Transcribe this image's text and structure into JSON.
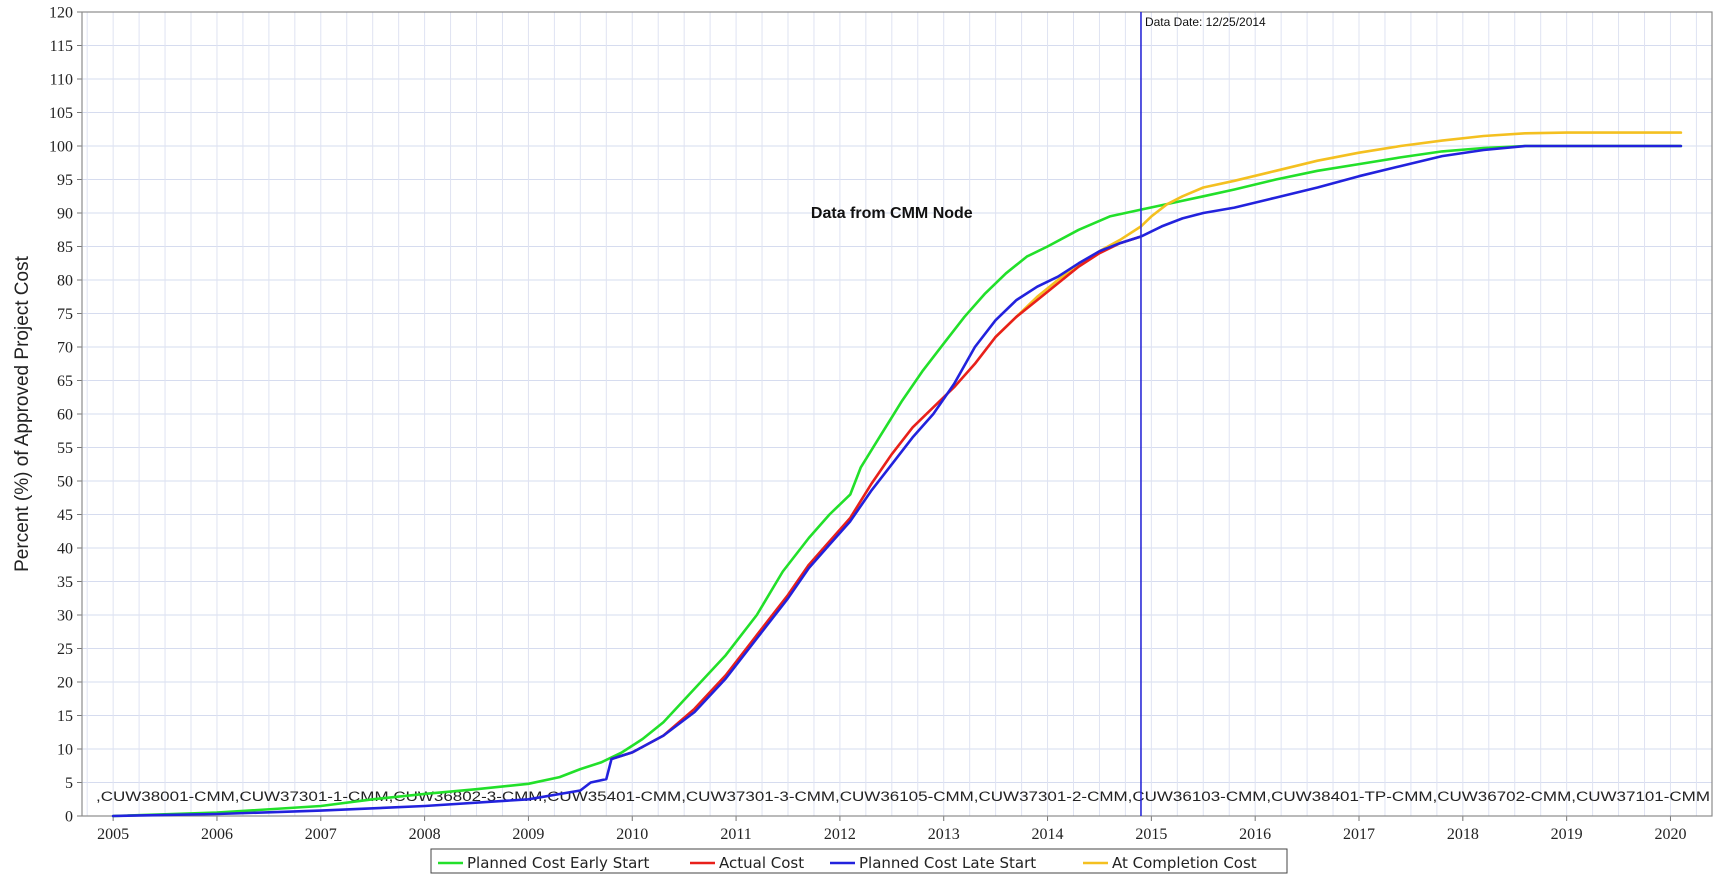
{
  "chart_data": {
    "type": "line",
    "title": "",
    "xlabel": "",
    "ylabel": "Percent (%) of Approved Project Cost",
    "xlim": [
      2004.7,
      2020.4
    ],
    "ylim": [
      0,
      120
    ],
    "y_step": 5,
    "x_ticks": [
      2005,
      2006,
      2007,
      2008,
      2009,
      2010,
      2011,
      2012,
      2013,
      2014,
      2015,
      2016,
      2017,
      2018,
      2019,
      2020
    ],
    "grid": true,
    "legend_position": "bottom",
    "data_date": {
      "label": "Data Date: 12/25/2014",
      "x": 2014.9,
      "color": "#2b2bd8"
    },
    "annotation": {
      "text": "Data from CMM Node",
      "x": 2012.5,
      "y": 90
    },
    "project_ids": ",CUW38001-CMM,CUW37301-1-CMM,CUW36802-3-CMM,CUW35401-CMM,CUW37301-3-CMM,CUW36105-CMM,CUW37301-2-CMM,CUW36103-CMM,CUW38401-TP-CMM,CUW36702-CMM,CUW37101-CMM",
    "series": [
      {
        "name": "Planned Cost Early Start",
        "color": "#22e02a",
        "x": [
          2005.0,
          2006.0,
          2007.0,
          2007.5,
          2008.0,
          2008.5,
          2009.0,
          2009.3,
          2009.5,
          2009.7,
          2009.9,
          2010.1,
          2010.3,
          2010.6,
          2010.9,
          2011.2,
          2011.45,
          2011.7,
          2011.9,
          2012.1,
          2012.2,
          2012.4,
          2012.6,
          2012.8,
          2013.0,
          2013.2,
          2013.4,
          2013.6,
          2013.8,
          2014.0,
          2014.3,
          2014.6,
          2014.9,
          2015.2,
          2015.5,
          2015.8,
          2016.2,
          2016.6,
          2017.0,
          2017.4,
          2017.8,
          2018.2,
          2018.6,
          2019.0,
          2019.5,
          2020.1
        ],
        "y": [
          0,
          0.5,
          1.5,
          2.5,
          3.3,
          4.0,
          4.8,
          5.8,
          7.0,
          8.0,
          9.5,
          11.5,
          14.0,
          19.0,
          24.0,
          30.0,
          36.5,
          41.5,
          45.0,
          48.0,
          52.0,
          57.0,
          62.0,
          66.5,
          70.5,
          74.5,
          78.0,
          81.0,
          83.5,
          85.0,
          87.5,
          89.5,
          90.5,
          91.5,
          92.5,
          93.5,
          95.0,
          96.3,
          97.3,
          98.3,
          99.2,
          99.7,
          100,
          100,
          100,
          100
        ]
      },
      {
        "name": "Actual Cost",
        "color": "#e8201a",
        "x": [
          2009.8,
          2010.0,
          2010.3,
          2010.6,
          2010.9,
          2011.2,
          2011.5,
          2011.7,
          2011.9,
          2012.1,
          2012.3,
          2012.5,
          2012.7,
          2012.9,
          2013.1,
          2013.3,
          2013.5,
          2013.7,
          2013.9,
          2014.1,
          2014.3,
          2014.5,
          2014.7,
          2014.9
        ],
        "y": [
          8.5,
          9.5,
          12.0,
          16.0,
          21.0,
          27.0,
          33.0,
          37.5,
          41.0,
          44.5,
          49.5,
          54.0,
          58.0,
          61.0,
          64.0,
          67.5,
          71.5,
          74.5,
          77.0,
          79.5,
          82.0,
          84.0,
          85.5,
          86.5
        ]
      },
      {
        "name": "Planned Cost Late Start",
        "color": "#2222dd",
        "x": [
          2005.0,
          2006.0,
          2007.0,
          2008.0,
          2009.0,
          2009.5,
          2009.6,
          2009.75,
          2009.8,
          2010.0,
          2010.3,
          2010.6,
          2010.9,
          2011.2,
          2011.5,
          2011.7,
          2011.9,
          2012.1,
          2012.3,
          2012.5,
          2012.7,
          2012.9,
          2013.1,
          2013.3,
          2013.5,
          2013.7,
          2013.9,
          2014.1,
          2014.3,
          2014.5,
          2014.7,
          2014.9,
          2015.1,
          2015.3,
          2015.5,
          2015.8,
          2016.2,
          2016.6,
          2017.0,
          2017.4,
          2017.8,
          2018.2,
          2018.6,
          2019.0,
          2019.5,
          2020.1
        ],
        "y": [
          0,
          0.3,
          0.8,
          1.5,
          2.5,
          3.8,
          5.0,
          5.5,
          8.5,
          9.5,
          12.0,
          15.5,
          20.5,
          26.5,
          32.5,
          37.0,
          40.5,
          44.0,
          48.5,
          52.5,
          56.5,
          60.0,
          64.5,
          70.0,
          74.0,
          77.0,
          79.0,
          80.5,
          82.5,
          84.3,
          85.5,
          86.5,
          88.0,
          89.2,
          90.0,
          90.8,
          92.3,
          93.8,
          95.5,
          97.0,
          98.5,
          99.4,
          100,
          100,
          100,
          100
        ]
      },
      {
        "name": "At Completion Cost",
        "color": "#f4c020",
        "x": [
          2013.5,
          2013.7,
          2013.9,
          2014.1,
          2014.3,
          2014.5,
          2014.7,
          2014.9,
          2015.0,
          2015.15,
          2015.3,
          2015.5,
          2015.8,
          2016.2,
          2016.6,
          2017.0,
          2017.4,
          2017.8,
          2018.2,
          2018.6,
          2019.0,
          2019.5,
          2020.1
        ],
        "y": [
          71.5,
          74.5,
          77.5,
          80.0,
          82.3,
          84.3,
          86.0,
          88.0,
          89.5,
          91.3,
          92.5,
          93.8,
          94.8,
          96.3,
          97.8,
          99.0,
          100.0,
          100.8,
          101.5,
          101.9,
          102,
          102,
          102
        ]
      }
    ]
  }
}
